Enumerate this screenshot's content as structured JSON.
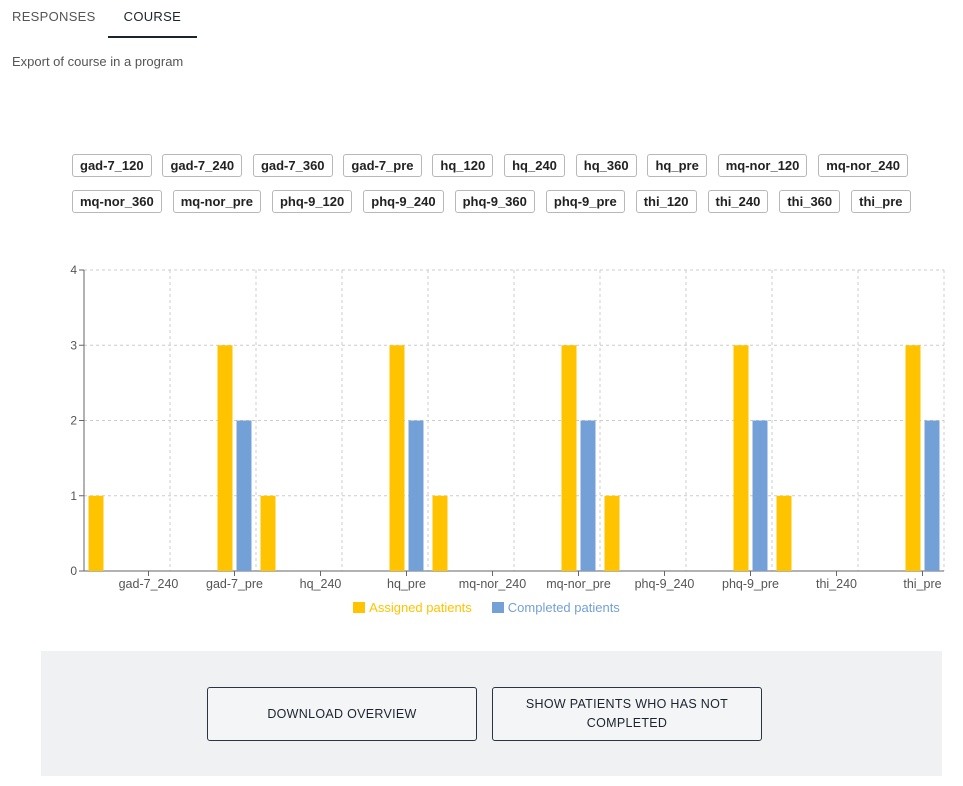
{
  "tabs": [
    {
      "label": "RESPONSES",
      "active": false
    },
    {
      "label": "COURSE",
      "active": true
    }
  ],
  "subtitle": "Export of course in a program",
  "filter_chips": {
    "row1": [
      "gad-7_120",
      "gad-7_240",
      "gad-7_360",
      "gad-7_pre",
      "hq_120",
      "hq_240",
      "hq_360",
      "hq_pre",
      "mq-nor_120",
      "mq-nor_240"
    ],
    "row2": [
      "mq-nor_360",
      "mq-nor_pre",
      "phq-9_120",
      "phq-9_240",
      "phq-9_360",
      "phq-9_pre",
      "thi_120",
      "thi_240",
      "thi_360",
      "thi_pre"
    ]
  },
  "colors": {
    "assigned": "#ffc300",
    "completed": "#74a0d8",
    "grid": "#cccccc",
    "axis": "#666666",
    "legend_assigned_text": "#ffc300",
    "legend_completed_text": "#74a0d8"
  },
  "chart_data": {
    "type": "bar",
    "categories": [
      "gad-7_120",
      "gad-7_240",
      "gad-7_360",
      "gad-7_pre",
      "hq_120",
      "hq_240",
      "hq_360",
      "hq_pre",
      "mq-nor_120",
      "mq-nor_240",
      "mq-nor_360",
      "mq-nor_pre",
      "phq-9_120",
      "phq-9_240",
      "phq-9_360",
      "phq-9_pre",
      "thi_120",
      "thi_240",
      "thi_360",
      "thi_pre"
    ],
    "x_tick_labels": [
      "gad-7_240",
      "gad-7_pre",
      "hq_240",
      "hq_pre",
      "mq-nor_240",
      "mq-nor_pre",
      "phq-9_240",
      "phq-9_pre",
      "thi_240",
      "thi_pre"
    ],
    "series": [
      {
        "name": "Assigned patients",
        "values": [
          1,
          0,
          0,
          3,
          1,
          0,
          0,
          3,
          1,
          0,
          0,
          3,
          1,
          0,
          0,
          3,
          1,
          0,
          0,
          3
        ]
      },
      {
        "name": "Completed patients",
        "values": [
          0,
          0,
          0,
          2,
          0,
          0,
          0,
          2,
          0,
          0,
          0,
          2,
          0,
          0,
          0,
          2,
          0,
          0,
          0,
          2
        ]
      }
    ],
    "ylim": [
      0,
      4
    ],
    "y_ticks": [
      0,
      1,
      2,
      3,
      4
    ],
    "grid": true,
    "legend": "bottom"
  },
  "buttons": {
    "download": "DOWNLOAD OVERVIEW",
    "show_not_completed": "SHOW PATIENTS WHO HAS NOT COMPLETED"
  }
}
